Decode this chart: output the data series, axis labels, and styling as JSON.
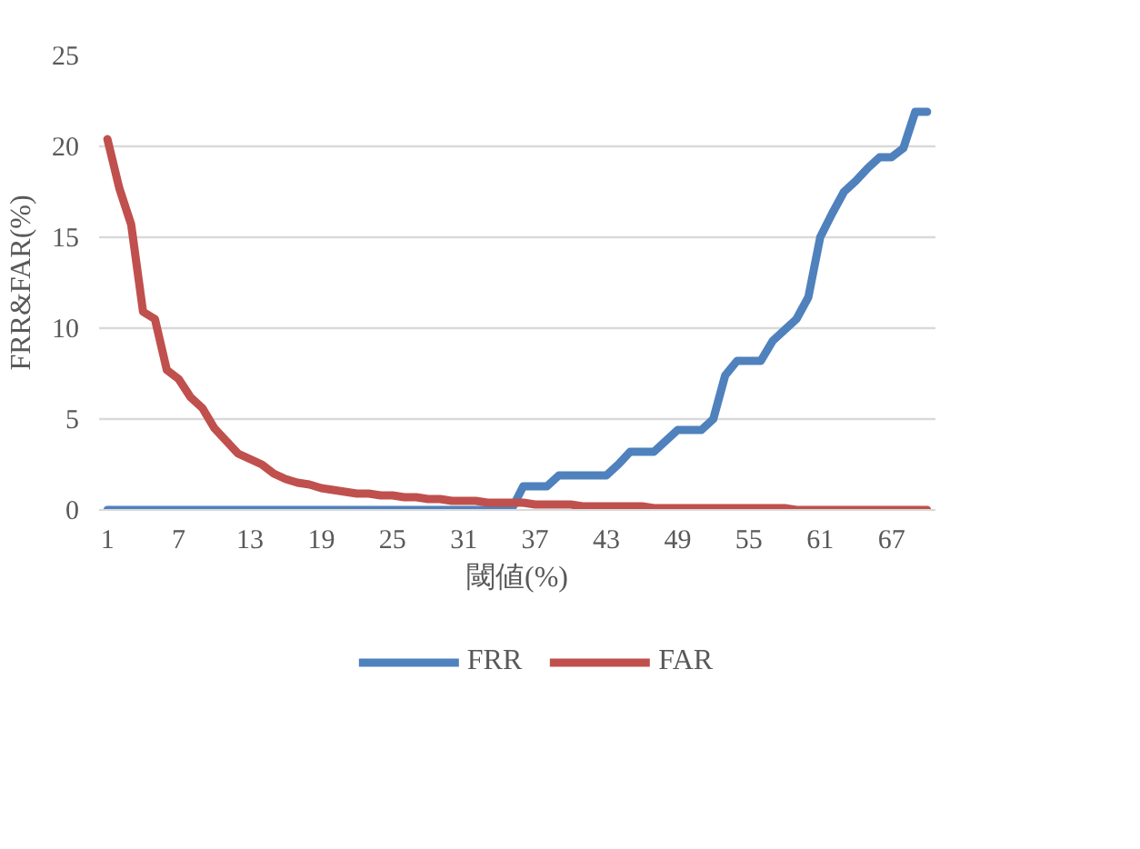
{
  "chart_data": {
    "type": "line",
    "xlabel": "閾値(%)",
    "ylabel": "FRR&FAR(%)",
    "categories": [
      "1",
      null,
      null,
      null,
      null,
      null,
      "7",
      null,
      null,
      null,
      null,
      null,
      "13",
      null,
      null,
      null,
      null,
      null,
      "19",
      null,
      null,
      null,
      null,
      null,
      "25",
      null,
      null,
      null,
      null,
      null,
      "31",
      null,
      null,
      null,
      null,
      null,
      "37",
      null,
      null,
      null,
      null,
      null,
      "43",
      null,
      null,
      null,
      null,
      null,
      "49",
      null,
      null,
      null,
      null,
      null,
      "55",
      null,
      null,
      null,
      null,
      null,
      "61",
      null,
      null,
      null,
      null,
      null,
      "67",
      null,
      null,
      null
    ],
    "series": [
      {
        "name": "FRR",
        "color": "#4f81bd",
        "values": [
          0,
          0,
          0,
          0,
          0,
          0,
          0,
          0,
          0,
          0,
          0,
          0,
          0,
          0,
          0,
          0,
          0,
          0,
          0,
          0,
          0,
          0,
          0,
          0,
          0,
          0,
          0,
          0,
          0,
          0,
          0,
          0,
          0,
          0,
          0,
          1.3,
          1.3,
          1.3,
          1.9,
          1.9,
          1.9,
          1.9,
          1.9,
          2.5,
          3.2,
          3.2,
          3.2,
          3.8,
          4.4,
          4.4,
          4.4,
          5.0,
          7.4,
          8.2,
          8.2,
          8.2,
          9.3,
          9.9,
          10.5,
          11.7,
          15.0,
          16.3,
          17.5,
          18.1,
          18.8,
          19.4,
          19.4,
          19.9,
          21.9,
          21.9
        ]
      },
      {
        "name": "FAR",
        "color": "#c0504d",
        "values": [
          20.4,
          17.7,
          15.7,
          10.9,
          10.5,
          7.7,
          7.2,
          6.2,
          5.6,
          4.5,
          3.8,
          3.1,
          2.8,
          2.5,
          2.0,
          1.7,
          1.5,
          1.4,
          1.2,
          1.1,
          1.0,
          0.9,
          0.9,
          0.8,
          0.8,
          0.7,
          0.7,
          0.6,
          0.6,
          0.5,
          0.5,
          0.5,
          0.4,
          0.4,
          0.4,
          0.4,
          0.3,
          0.3,
          0.3,
          0.3,
          0.2,
          0.2,
          0.2,
          0.2,
          0.2,
          0.2,
          0.1,
          0.1,
          0.1,
          0.1,
          0.1,
          0.1,
          0.1,
          0.1,
          0.1,
          0.1,
          0.1,
          0.1,
          0.0,
          0.0,
          0.0,
          0.0,
          0.0,
          0.0,
          0.0,
          0.0,
          0.0,
          0.0,
          0.0,
          0.0
        ]
      }
    ],
    "ylim": [
      0,
      25
    ],
    "yticks": [
      0,
      5,
      10,
      15,
      20,
      25
    ],
    "grid": "y",
    "legend": "bottom",
    "marker": "none",
    "line_style": "solid"
  }
}
